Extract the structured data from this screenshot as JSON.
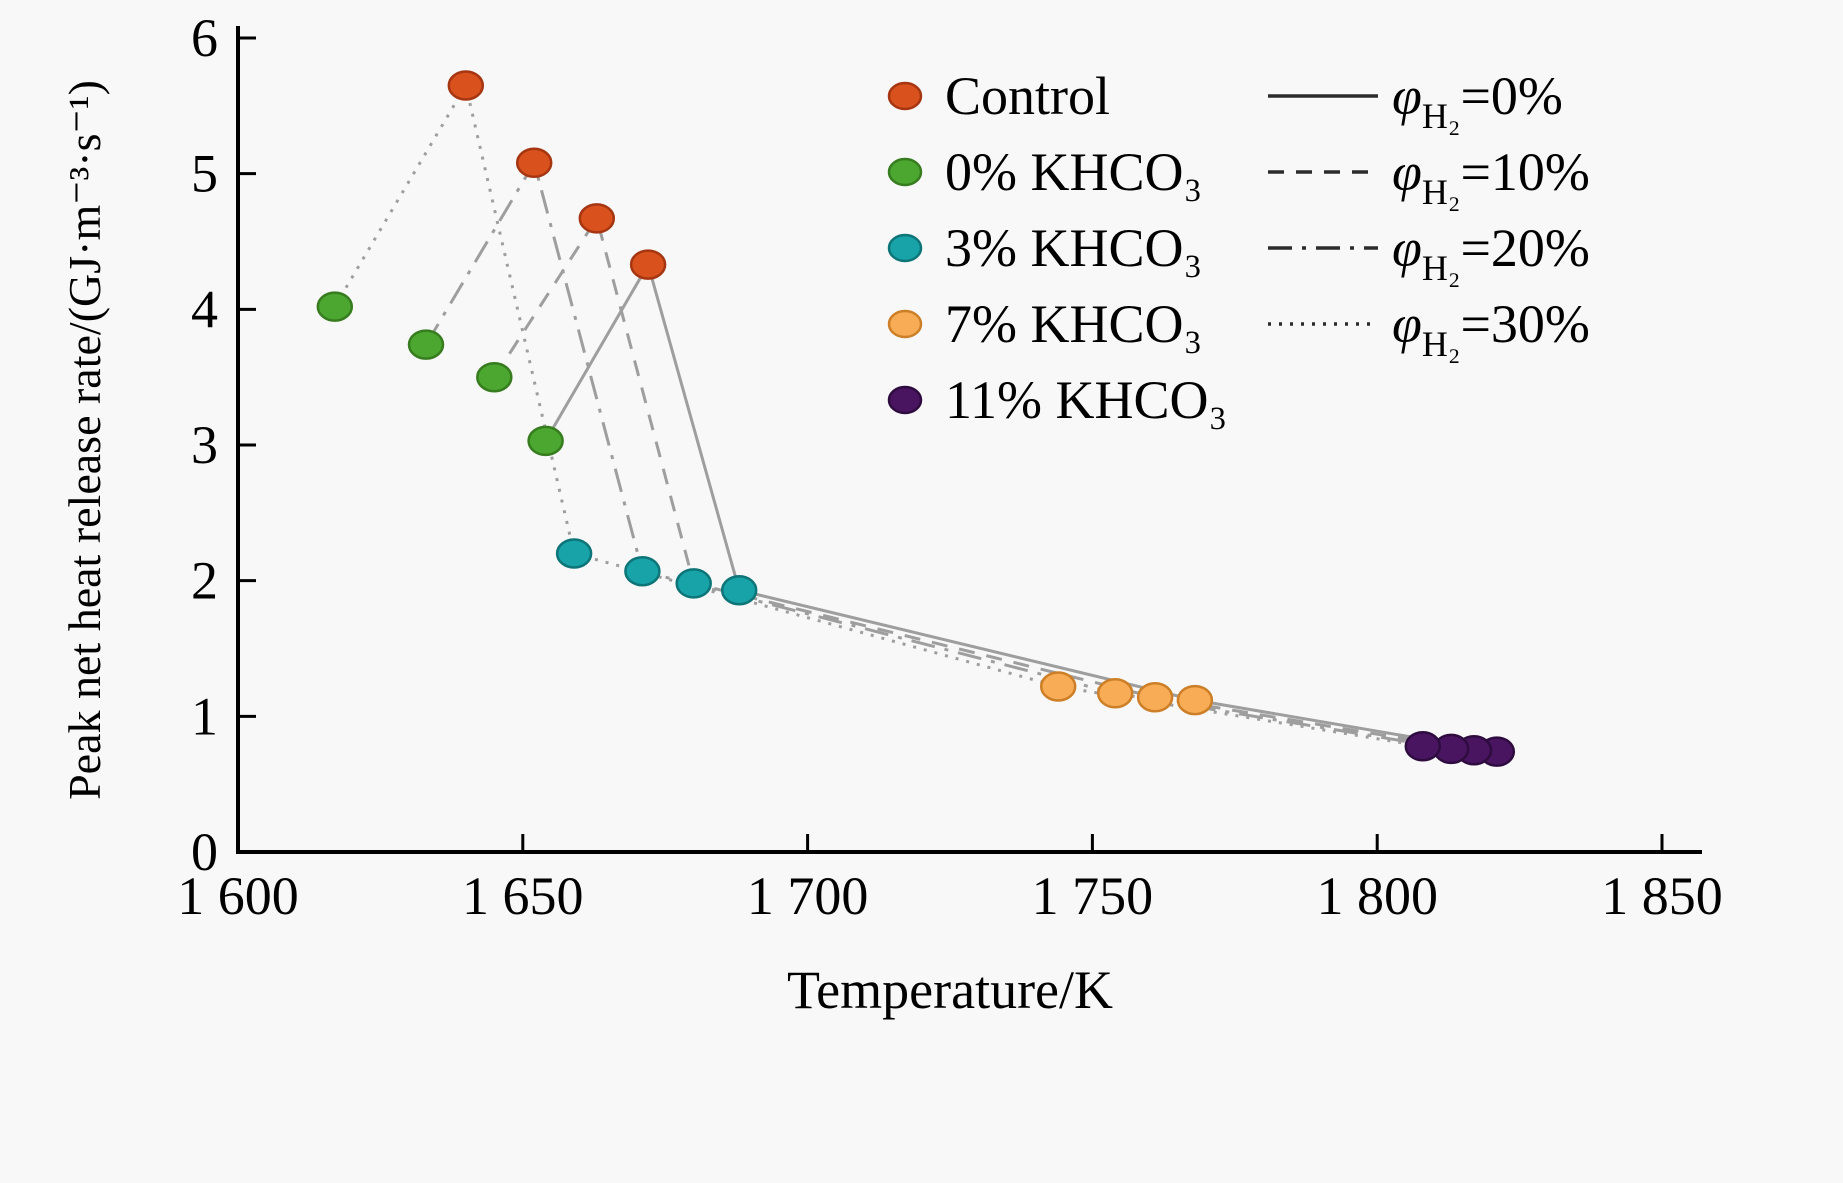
{
  "figure": {
    "background": "#f8f8f8",
    "axis_color": "#000000",
    "text_color": "#000000",
    "plot_line_color": "#9e9e9e",
    "legend_line_color": "#2b2b2b"
  },
  "chart_data": {
    "type": "scatter-line",
    "title": "",
    "xlabel": "Temperature/K",
    "ylabel": "Peak net heat release rate/(GJ·m⁻³·s⁻¹)",
    "xlim": [
      1600,
      1850
    ],
    "ylim": [
      0,
      6
    ],
    "grid": false,
    "legend_position": "top-right-inside",
    "x_ticks": [
      {
        "value": 1600,
        "label": "1 600"
      },
      {
        "value": 1650,
        "label": "1 650"
      },
      {
        "value": 1700,
        "label": "1 700"
      },
      {
        "value": 1750,
        "label": "1 750"
      },
      {
        "value": 1800,
        "label": "1 800"
      },
      {
        "value": 1850,
        "label": "1 850"
      }
    ],
    "y_ticks": [
      {
        "value": 0,
        "label": "0"
      },
      {
        "value": 1,
        "label": "1"
      },
      {
        "value": 2,
        "label": "2"
      },
      {
        "value": 3,
        "label": "3"
      },
      {
        "value": 4,
        "label": "4"
      },
      {
        "value": 5,
        "label": "5"
      },
      {
        "value": 6,
        "label": "6"
      }
    ],
    "h2_levels": [
      {
        "id": "h2-0",
        "phi": "φ",
        "sub": "H₂",
        "eq": "=0%",
        "dash": ""
      },
      {
        "id": "h2-10",
        "phi": "φ",
        "sub": "H₂",
        "eq": "=10%",
        "dash": "16,12"
      },
      {
        "id": "h2-20",
        "phi": "φ",
        "sub": "H₂",
        "eq": "=20%",
        "dash": "24,10,4,10"
      },
      {
        "id": "h2-30",
        "phi": "φ",
        "sub": "H₂",
        "eq": "=30%",
        "dash": "3,8"
      }
    ],
    "groups": [
      {
        "id": "control",
        "label": "Control",
        "color": "#d9511d",
        "edge": "#a53611",
        "points": [
          [
            1672,
            4.33
          ],
          [
            1663,
            4.67
          ],
          [
            1652,
            5.08
          ],
          [
            1640,
            5.65
          ]
        ]
      },
      {
        "id": "khco3-0",
        "label": "0% KHCO₃",
        "color": "#4ba72f",
        "edge": "#377c1f",
        "points": [
          [
            1654,
            3.03
          ],
          [
            1645,
            3.5
          ],
          [
            1633,
            3.74
          ],
          [
            1617,
            4.02
          ]
        ]
      },
      {
        "id": "khco3-3",
        "label": "3% KHCO₃",
        "color": "#17a3a7",
        "edge": "#0d7578",
        "points": [
          [
            1688,
            1.93
          ],
          [
            1680,
            1.98
          ],
          [
            1671,
            2.07
          ],
          [
            1659,
            2.2
          ]
        ]
      },
      {
        "id": "khco3-7",
        "label": "7% KHCO₃",
        "color": "#f8ac55",
        "edge": "#cd7f27",
        "points": [
          [
            1768,
            1.12
          ],
          [
            1761,
            1.14
          ],
          [
            1754,
            1.17
          ],
          [
            1744,
            1.22
          ]
        ]
      },
      {
        "id": "khco3-11",
        "label": "11% KHCO₃",
        "color": "#4a1560",
        "edge": "#2f0c40",
        "points": [
          [
            1821,
            0.74
          ],
          [
            1817,
            0.75
          ],
          [
            1813,
            0.76
          ],
          [
            1808,
            0.78
          ]
        ]
      }
    ],
    "series_note": "Each h2_level line connects one point per group; group point arrays are ordered by h2 level [0%,10%,20%,30%]"
  }
}
